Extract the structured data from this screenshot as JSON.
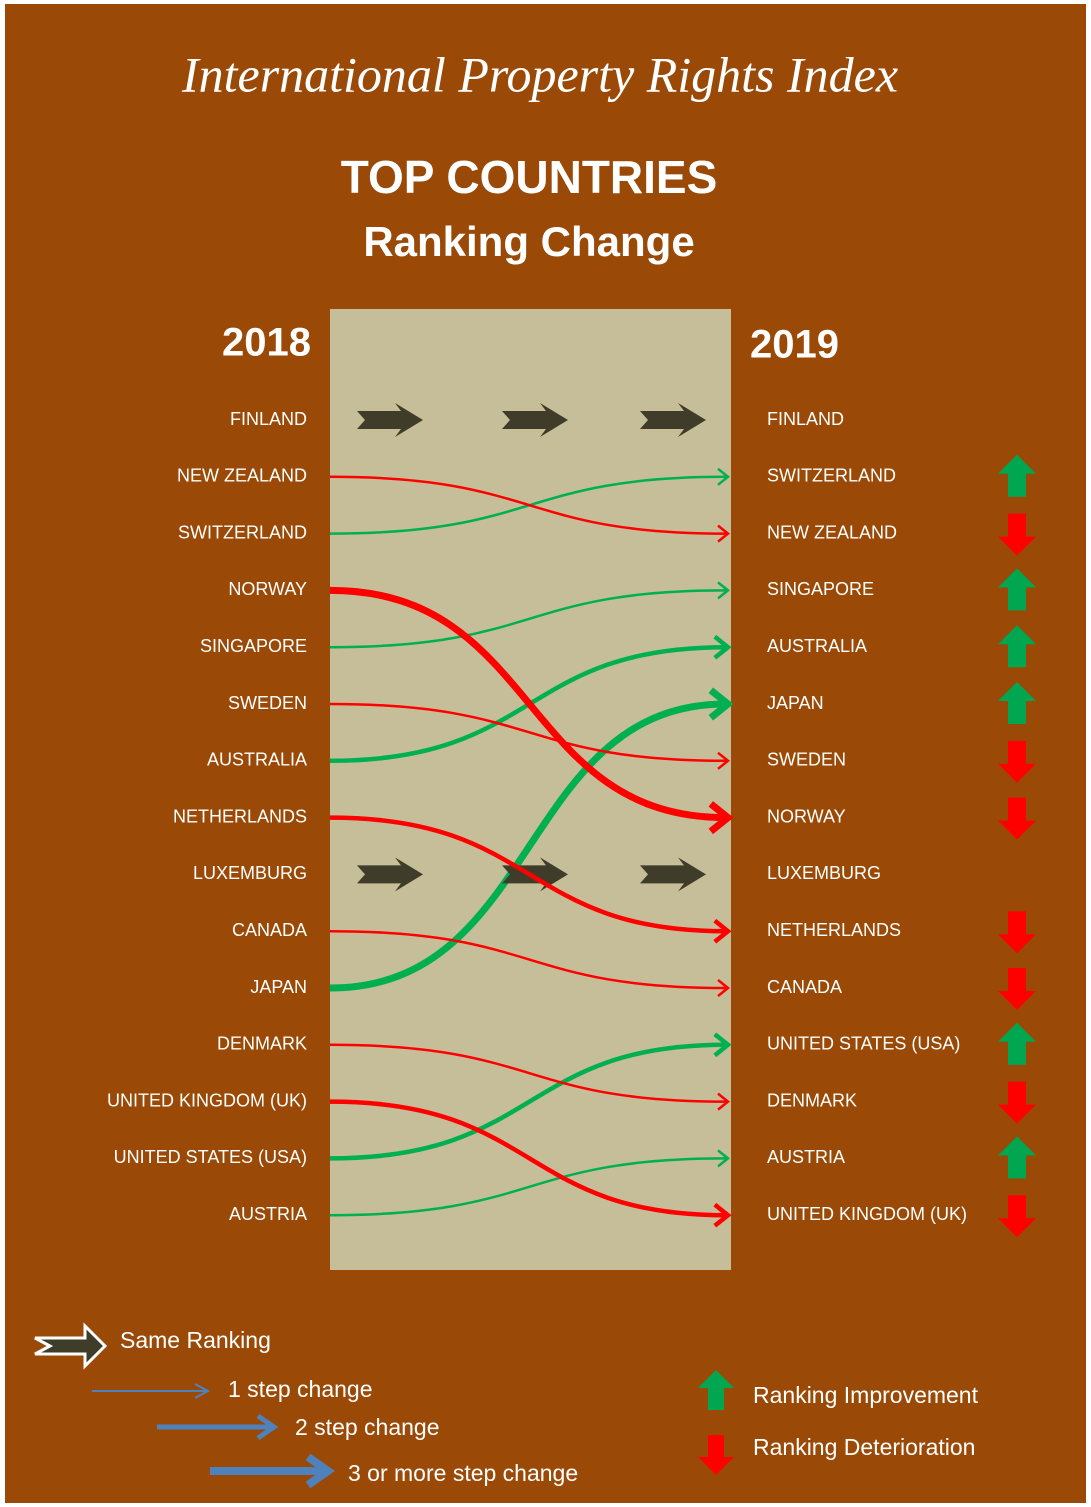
{
  "header": {
    "title": "International Property Rights Index",
    "heading": "TOP COUNTRIES",
    "subheading": "Ranking Change"
  },
  "left": {
    "year": "2018",
    "countries": [
      "FINLAND",
      "NEW ZEALAND",
      "SWITZERLAND",
      "NORWAY",
      "SINGAPORE",
      "SWEDEN",
      "AUSTRALIA",
      "NETHERLANDS",
      "LUXEMBURG",
      "CANADA",
      "JAPAN",
      "DENMARK",
      "UNITED KINGDOM (UK)",
      "UNITED STATES (USA)",
      "AUSTRIA"
    ]
  },
  "right": {
    "year": "2019",
    "countries": [
      "FINLAND",
      "SWITZERLAND",
      "NEW ZEALAND",
      "SINGAPORE",
      "AUSTRALIA",
      "JAPAN",
      "SWEDEN",
      "NORWAY",
      "LUXEMBURG",
      "NETHERLANDS",
      "CANADA",
      "UNITED STATES (USA)",
      "DENMARK",
      "AUSTRIA",
      "UNITED KINGDOM (UK)"
    ]
  },
  "legend": {
    "same": "Same Ranking",
    "steps": [
      "1 step change",
      "2 step change",
      "3 or more step change"
    ],
    "improvement": "Ranking Improvement",
    "deterioration": "Ranking Deterioration"
  }
}
